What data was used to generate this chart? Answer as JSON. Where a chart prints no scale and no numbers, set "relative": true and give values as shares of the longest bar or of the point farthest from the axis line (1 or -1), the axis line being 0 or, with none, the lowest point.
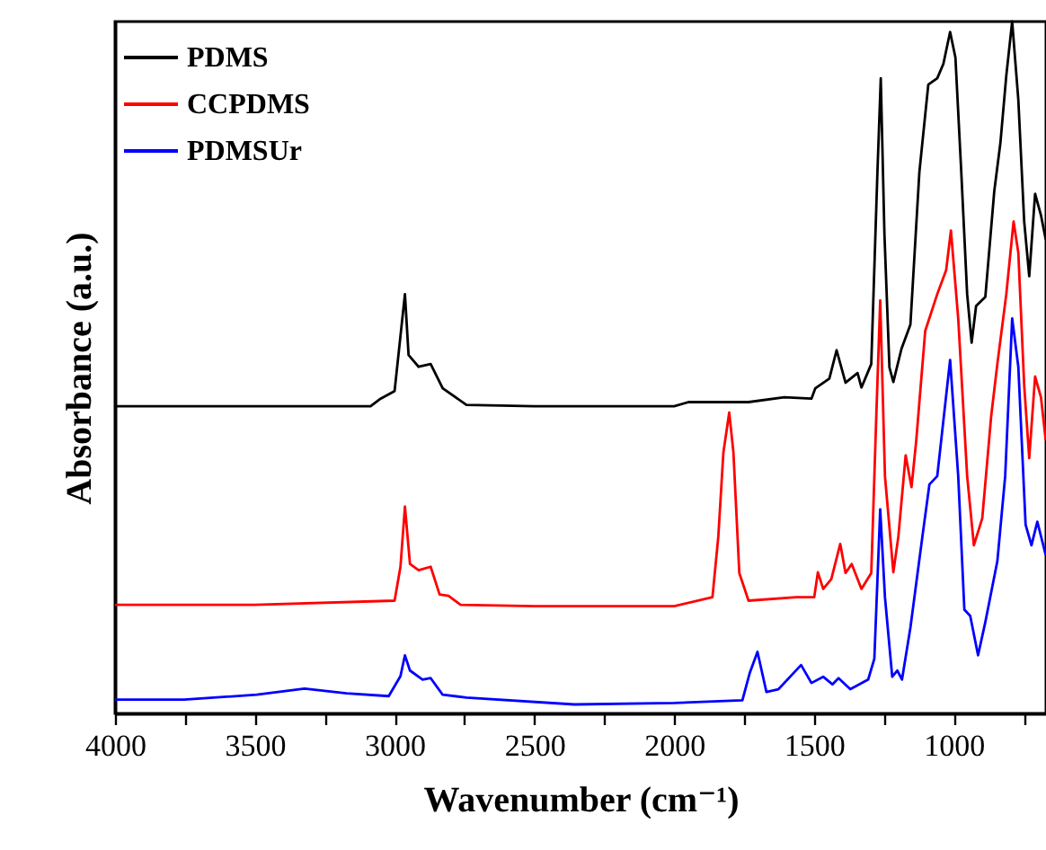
{
  "chart_data": {
    "type": "line",
    "xlabel": "Wavenumber (cm⁻¹)",
    "ylabel": "Absorbance (a.u.)",
    "relative": true,
    "legend": "top left",
    "marker": "none",
    "line_style": "solid",
    "xlim": [
      4000,
      670
    ],
    "xticks": [
      4000,
      {
        "value": 3750,
        "label": null
      },
      3500,
      {
        "value": 3250,
        "label": null
      },
      3000,
      {
        "value": 2750,
        "label": null
      },
      2500,
      {
        "value": 2250,
        "label": null
      },
      2000,
      {
        "value": 1750,
        "label": null
      },
      1500,
      {
        "value": 1250,
        "label": null
      },
      1000,
      {
        "value": 750,
        "label": null
      }
    ],
    "series": [
      {
        "name": "PDMS",
        "color": "#000000",
        "x": [
          4000,
          3500,
          3086,
          3050,
          3000,
          2963,
          2950,
          2914,
          2871,
          2828,
          2743,
          2500,
          2000,
          1949,
          1734,
          1606,
          1509,
          1495,
          1445,
          1419,
          1387,
          1344,
          1330,
          1295,
          1273,
          1261,
          1248,
          1230,
          1216,
          1187,
          1155,
          1123,
          1091,
          1059,
          1037,
          1013,
          994,
          973,
          952,
          936,
          920,
          887,
          855,
          833,
          812,
          791,
          769,
          748,
          730,
          709,
          688,
          671
        ],
        "values": [
          0.444,
          0.444,
          0.444,
          0.455,
          0.466,
          0.606,
          0.518,
          0.501,
          0.505,
          0.47,
          0.446,
          0.444,
          0.444,
          0.45,
          0.45,
          0.457,
          0.455,
          0.47,
          0.484,
          0.525,
          0.478,
          0.492,
          0.471,
          0.505,
          0.782,
          0.918,
          0.694,
          0.5,
          0.479,
          0.527,
          0.562,
          0.782,
          0.909,
          0.918,
          0.939,
          0.985,
          0.948,
          0.782,
          0.606,
          0.536,
          0.589,
          0.602,
          0.755,
          0.825,
          0.922,
          1.0,
          0.887,
          0.711,
          0.632,
          0.751,
          0.72,
          0.685
        ]
      },
      {
        "name": "CCPDMS",
        "color": "#ff0000",
        "x": [
          4000,
          3500,
          3000,
          2979,
          2963,
          2945,
          2914,
          2871,
          2839,
          2807,
          2764,
          2500,
          2000,
          1863,
          1842,
          1824,
          1803,
          1788,
          1767,
          1734,
          1563,
          1499,
          1486,
          1467,
          1438,
          1406,
          1387,
          1365,
          1330,
          1295,
          1277,
          1263,
          1246,
          1216,
          1198,
          1172,
          1151,
          1134,
          1102,
          1059,
          1027,
          1010,
          984,
          952,
          928,
          898,
          866,
          844,
          812,
          786,
          769,
          748,
          730,
          709,
          688,
          671
        ],
        "values": [
          0.157,
          0.157,
          0.163,
          0.212,
          0.299,
          0.216,
          0.207,
          0.212,
          0.172,
          0.17,
          0.157,
          0.155,
          0.155,
          0.168,
          0.256,
          0.377,
          0.435,
          0.377,
          0.203,
          0.163,
          0.168,
          0.168,
          0.204,
          0.18,
          0.194,
          0.245,
          0.203,
          0.216,
          0.18,
          0.203,
          0.43,
          0.597,
          0.343,
          0.204,
          0.256,
          0.373,
          0.327,
          0.395,
          0.553,
          0.606,
          0.641,
          0.698,
          0.571,
          0.343,
          0.243,
          0.282,
          0.43,
          0.505,
          0.606,
          0.711,
          0.666,
          0.474,
          0.369,
          0.487,
          0.457,
          0.395
        ]
      },
      {
        "name": "PDMSUr",
        "color": "#0000ff",
        "x": [
          4000,
          3753,
          3493,
          3322,
          3172,
          3021,
          2979,
          2963,
          2945,
          2900,
          2871,
          2828,
          2743,
          2357,
          2000,
          1756,
          1730,
          1702,
          1670,
          1627,
          1546,
          1509,
          1467,
          1434,
          1412,
          1370,
          1306,
          1284,
          1263,
          1246,
          1220,
          1202,
          1185,
          1155,
          1112,
          1087,
          1059,
          1013,
          984,
          962,
          941,
          913,
          887,
          844,
          816,
          791,
          769,
          743,
          722,
          701,
          671
        ],
        "values": [
          0.02,
          0.02,
          0.027,
          0.036,
          0.029,
          0.025,
          0.054,
          0.084,
          0.062,
          0.049,
          0.051,
          0.027,
          0.023,
          0.013,
          0.015,
          0.019,
          0.058,
          0.089,
          0.031,
          0.035,
          0.07,
          0.044,
          0.053,
          0.042,
          0.051,
          0.035,
          0.049,
          0.079,
          0.295,
          0.168,
          0.053,
          0.062,
          0.049,
          0.124,
          0.256,
          0.331,
          0.343,
          0.511,
          0.343,
          0.15,
          0.141,
          0.084,
          0.132,
          0.22,
          0.343,
          0.571,
          0.501,
          0.273,
          0.243,
          0.277,
          0.229
        ]
      }
    ]
  }
}
